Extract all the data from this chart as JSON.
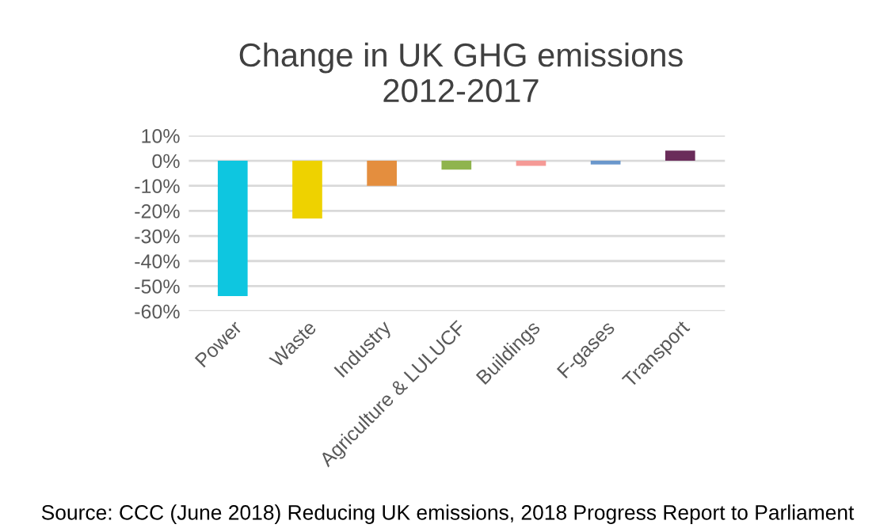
{
  "chart_data": {
    "type": "bar",
    "title": "Change in UK GHG emissions\n2012-2017",
    "categories": [
      "Power",
      "Waste",
      "Industry",
      "Agriculture & LULUCF",
      "Buildings",
      "F-gases",
      "Transport"
    ],
    "values": [
      -54,
      -23,
      -10,
      -3.5,
      -2,
      -1.5,
      4
    ],
    "colors": [
      "#0ec6e0",
      "#eed200",
      "#e48e3e",
      "#8fb44e",
      "#f59a96",
      "#6a97cc",
      "#6a2c5a"
    ],
    "ylim": [
      -60,
      10
    ],
    "yticks": [
      {
        "value": 10,
        "label": "10%"
      },
      {
        "value": 0,
        "label": "0%"
      },
      {
        "value": -10,
        "label": "-10%"
      },
      {
        "value": -20,
        "label": "-20%"
      },
      {
        "value": -30,
        "label": "-30%"
      },
      {
        "value": -40,
        "label": "-40%"
      },
      {
        "value": -50,
        "label": "-50%"
      },
      {
        "value": -60,
        "label": "-60%"
      }
    ],
    "grid": "y",
    "annotations": [
      "Source: CCC (June 2018) Reducing UK emissions, 2018 Progress Report to Parliament"
    ]
  }
}
